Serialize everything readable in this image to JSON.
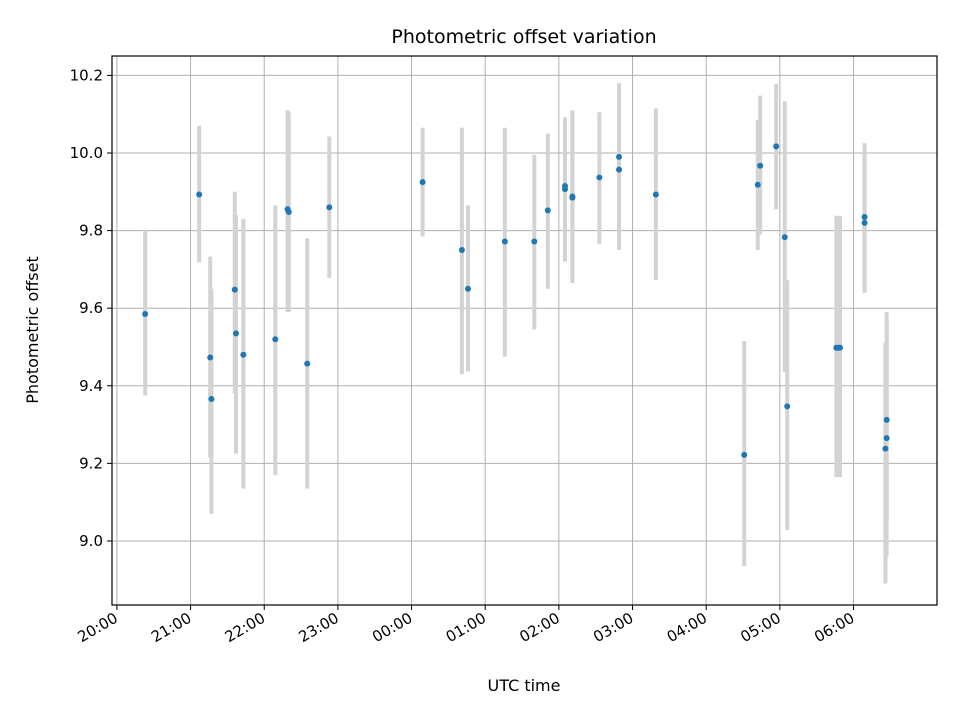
{
  "chart_data": {
    "type": "scatter",
    "title": "Photometric offset variation",
    "xlabel": "UTC time",
    "ylabel": "Photometric offset",
    "x_unit": "UTC time (HH:MM)",
    "xlim": [
      "19:56",
      "07:08"
    ],
    "ylim": [
      8.835,
      10.25
    ],
    "grid": true,
    "colors": {
      "point": "#1f77b4",
      "errorbar": "#d3d3d3",
      "grid": "#b0b0b0"
    },
    "x_ticks": [
      "20:00",
      "21:00",
      "22:00",
      "23:00",
      "00:00",
      "01:00",
      "02:00",
      "03:00",
      "04:00",
      "05:00",
      "06:00"
    ],
    "y_ticks": [
      9.0,
      9.2,
      9.4,
      9.6,
      9.8,
      10.0,
      10.2
    ],
    "y_tick_labels": [
      "9.0",
      "9.2",
      "9.4",
      "9.6",
      "9.8",
      "10.0",
      "10.2"
    ],
    "points": [
      {
        "x": "20:23",
        "y": 9.585,
        "ylo": 9.375,
        "yhi": 9.8
      },
      {
        "x": "21:07",
        "y": 9.893,
        "ylo": 9.718,
        "yhi": 10.07
      },
      {
        "x": "21:16",
        "y": 9.473,
        "ylo": 9.215,
        "yhi": 9.733
      },
      {
        "x": "21:17",
        "y": 9.366,
        "ylo": 9.07,
        "yhi": 9.65
      },
      {
        "x": "21:36",
        "y": 9.648,
        "ylo": 9.38,
        "yhi": 9.9
      },
      {
        "x": "21:37",
        "y": 9.535,
        "ylo": 9.225,
        "yhi": 9.84
      },
      {
        "x": "21:43",
        "y": 9.48,
        "ylo": 9.135,
        "yhi": 9.83
      },
      {
        "x": "22:09",
        "y": 9.52,
        "ylo": 9.17,
        "yhi": 9.865
      },
      {
        "x": "22:19",
        "y": 9.855,
        "ylo": 9.59,
        "yhi": 10.11
      },
      {
        "x": "22:20",
        "y": 9.848,
        "ylo": 9.59,
        "yhi": 10.105
      },
      {
        "x": "22:35",
        "y": 9.457,
        "ylo": 9.135,
        "yhi": 9.78
      },
      {
        "x": "22:53",
        "y": 9.86,
        "ylo": 9.678,
        "yhi": 10.043
      },
      {
        "x": "00:09",
        "y": 9.925,
        "ylo": 9.785,
        "yhi": 10.065
      },
      {
        "x": "00:41",
        "y": 9.75,
        "ylo": 9.43,
        "yhi": 10.065
      },
      {
        "x": "00:46",
        "y": 9.65,
        "ylo": 9.437,
        "yhi": 9.865
      },
      {
        "x": "01:16",
        "y": 9.772,
        "ylo": 9.475,
        "yhi": 10.065
      },
      {
        "x": "01:40",
        "y": 9.772,
        "ylo": 9.545,
        "yhi": 9.995
      },
      {
        "x": "01:51",
        "y": 9.852,
        "ylo": 9.65,
        "yhi": 10.05
      },
      {
        "x": "02:05",
        "y": 9.915,
        "ylo": 9.72,
        "yhi": 10.092
      },
      {
        "x": "02:05",
        "y": 9.907,
        "ylo": 9.725,
        "yhi": 10.09
      },
      {
        "x": "02:11",
        "y": 9.888,
        "ylo": 9.665,
        "yhi": 10.11
      },
      {
        "x": "02:11",
        "y": 9.885,
        "ylo": 9.665,
        "yhi": 10.105
      },
      {
        "x": "02:33",
        "y": 9.937,
        "ylo": 9.765,
        "yhi": 10.105
      },
      {
        "x": "02:49",
        "y": 9.99,
        "ylo": 9.805,
        "yhi": 10.18
      },
      {
        "x": "02:49",
        "y": 9.957,
        "ylo": 9.75,
        "yhi": 10.165
      },
      {
        "x": "03:19",
        "y": 9.893,
        "ylo": 9.672,
        "yhi": 10.115
      },
      {
        "x": "04:31",
        "y": 9.222,
        "ylo": 8.935,
        "yhi": 9.515
      },
      {
        "x": "04:42",
        "y": 9.918,
        "ylo": 9.75,
        "yhi": 10.085
      },
      {
        "x": "04:44",
        "y": 9.967,
        "ylo": 9.79,
        "yhi": 10.148
      },
      {
        "x": "04:57",
        "y": 10.017,
        "ylo": 9.855,
        "yhi": 10.178
      },
      {
        "x": "05:04",
        "y": 9.783,
        "ylo": 9.435,
        "yhi": 10.133
      },
      {
        "x": "05:06",
        "y": 9.347,
        "ylo": 9.028,
        "yhi": 9.672
      },
      {
        "x": "05:46",
        "y": 9.498,
        "ylo": 9.165,
        "yhi": 9.838
      },
      {
        "x": "05:48",
        "y": 9.498,
        "ylo": 9.165,
        "yhi": 9.838
      },
      {
        "x": "05:49",
        "y": 9.498,
        "ylo": 9.165,
        "yhi": 9.838
      },
      {
        "x": "06:09",
        "y": 9.835,
        "ylo": 9.64,
        "yhi": 10.025
      },
      {
        "x": "06:09",
        "y": 9.82,
        "ylo": 9.64,
        "yhi": 10.0
      },
      {
        "x": "06:27",
        "y": 9.312,
        "ylo": 9.05,
        "yhi": 9.57
      },
      {
        "x": "06:27",
        "y": 9.265,
        "ylo": 8.96,
        "yhi": 9.59
      },
      {
        "x": "06:26",
        "y": 9.238,
        "ylo": 8.89,
        "yhi": 9.51
      }
    ]
  }
}
